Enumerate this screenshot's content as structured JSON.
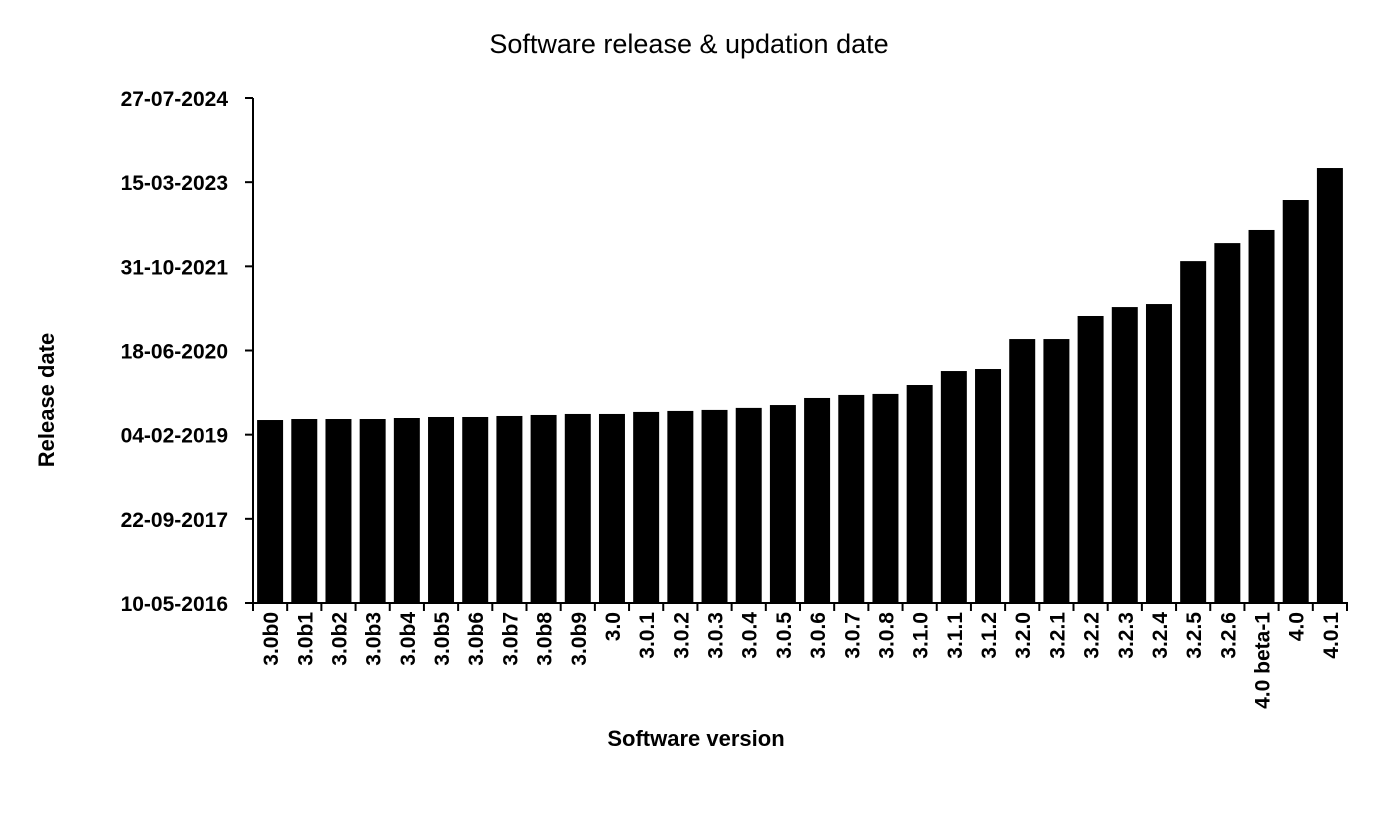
{
  "chart_data": {
    "type": "bar",
    "title": "Software release & updation date",
    "x_label": "Software version",
    "y_label": "Release date",
    "categories": [
      "3.0b0",
      "3.0b1",
      "3.0b2",
      "3.0b3",
      "3.0b4",
      "3.0b5",
      "3.0b6",
      "3.0b7",
      "3.0b8",
      "3.0b9",
      "3.0",
      "3.0.1",
      "3.0.2",
      "3.0.3",
      "3.0.4",
      "3.0.5",
      "3.0.6",
      "3.0.7",
      "3.0.8",
      "3.1.0",
      "3.1.1",
      "3.1.2",
      "3.2.0",
      "3.2.1",
      "3.2.2",
      "3.2.3",
      "3.2.4",
      "3.2.5",
      "3.2.6",
      "4.0 beta-1",
      "4.0",
      "4.0.1"
    ],
    "values": [
      43587,
      43593,
      43593,
      43593,
      43599,
      43605,
      43605,
      43611,
      43617,
      43623,
      43623,
      43635,
      43641,
      43647,
      43659,
      43676,
      43718,
      43736,
      43742,
      43795,
      43878,
      43890,
      44068,
      44068,
      44205,
      44258,
      44276,
      44531,
      44638,
      44716,
      44894,
      45084
    ],
    "color": "#000000",
    "ylim": [
      42500,
      45500
    ],
    "yticks": [
      {
        "value": 42500,
        "label": "10-05-2016"
      },
      {
        "value": 43000,
        "label": "22-09-2017"
      },
      {
        "value": 43500,
        "label": "04-02-2019"
      },
      {
        "value": 44000,
        "label": "18-06-2020"
      },
      {
        "value": 44500,
        "label": "31-10-2021"
      },
      {
        "value": 45000,
        "label": "15-03-2023"
      },
      {
        "value": 45500,
        "label": "27-07-2024"
      }
    ],
    "grid": false
  }
}
